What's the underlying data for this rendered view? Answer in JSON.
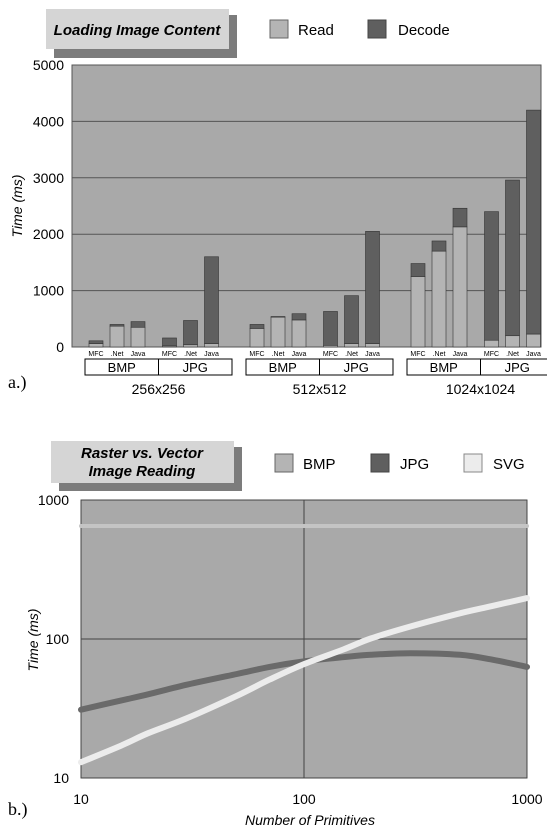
{
  "chart_data": [
    {
      "type": "bar",
      "subtype": "stacked",
      "panel_label": "a.)",
      "title": "Loading Image Content",
      "ylabel": "Time (ms)",
      "xlabel": "",
      "ylim": [
        0,
        5000
      ],
      "yticks": [
        0,
        1000,
        2000,
        3000,
        4000,
        5000
      ],
      "grid": true,
      "legend_position": "top",
      "series": [
        {
          "name": "Read",
          "color": "#b4b4b4"
        },
        {
          "name": "Decode",
          "color": "#5f5f5f"
        }
      ],
      "groups": [
        {
          "label": "256x256",
          "formats": [
            {
              "label": "BMP",
              "bars": [
                {
                  "lib": "MFC",
                  "read": 60,
                  "decode": 50
                },
                {
                  "lib": ".Net",
                  "read": 370,
                  "decode": 30
                },
                {
                  "lib": "Java",
                  "read": 350,
                  "decode": 100
                }
              ]
            },
            {
              "label": "JPG",
              "bars": [
                {
                  "lib": "MFC",
                  "read": 20,
                  "decode": 140
                },
                {
                  "lib": ".Net",
                  "read": 40,
                  "decode": 430
                },
                {
                  "lib": "Java",
                  "read": 60,
                  "decode": 1540
                }
              ]
            }
          ]
        },
        {
          "label": "512x512",
          "formats": [
            {
              "label": "BMP",
              "bars": [
                {
                  "lib": "MFC",
                  "read": 330,
                  "decode": 70
                },
                {
                  "lib": ".Net",
                  "read": 530,
                  "decode": 10
                },
                {
                  "lib": "Java",
                  "read": 480,
                  "decode": 110
                }
              ]
            },
            {
              "label": "JPG",
              "bars": [
                {
                  "lib": "MFC",
                  "read": 30,
                  "decode": 600
                },
                {
                  "lib": ".Net",
                  "read": 60,
                  "decode": 850
                },
                {
                  "lib": "Java",
                  "read": 60,
                  "decode": 1990
                }
              ]
            }
          ]
        },
        {
          "label": "1024x1024",
          "formats": [
            {
              "label": "BMP",
              "bars": [
                {
                  "lib": "MFC",
                  "read": 1250,
                  "decode": 230
                },
                {
                  "lib": ".Net",
                  "read": 1700,
                  "decode": 180
                },
                {
                  "lib": "Java",
                  "read": 2130,
                  "decode": 330
                }
              ]
            },
            {
              "label": "JPG",
              "bars": [
                {
                  "lib": "MFC",
                  "read": 120,
                  "decode": 2280
                },
                {
                  "lib": ".Net",
                  "read": 200,
                  "decode": 2760
                },
                {
                  "lib": "Java",
                  "read": 230,
                  "decode": 3970
                }
              ]
            }
          ]
        }
      ]
    },
    {
      "type": "line",
      "panel_label": "b.)",
      "title": "Raster vs. Vector Image Reading",
      "title_lines": [
        "Raster vs. Vector",
        "Image Reading"
      ],
      "xlabel": "Number of Primitives",
      "ylabel": "Time (ms)",
      "xscale": "log",
      "yscale": "log",
      "xlim": [
        10,
        1000
      ],
      "ylim": [
        10,
        1000
      ],
      "xticks": [
        10,
        100,
        1000
      ],
      "yticks": [
        10,
        100,
        1000
      ],
      "grid": true,
      "legend_position": "top",
      "x": [
        10,
        15,
        20,
        30,
        50,
        70,
        100,
        150,
        200,
        300,
        500,
        700,
        1000
      ],
      "series": [
        {
          "name": "BMP",
          "color": "#c4c4c4",
          "values": [
            650,
            650,
            650,
            650,
            650,
            650,
            650,
            650,
            650,
            650,
            650,
            650,
            650
          ]
        },
        {
          "name": "JPG",
          "color": "#6a6a6a",
          "values": [
            31,
            36,
            40,
            47,
            56,
            63,
            69,
            74,
            77,
            79,
            77,
            71,
            63
          ]
        },
        {
          "name": "SVG",
          "color": "#ececec",
          "values": [
            13,
            17,
            21,
            27,
            39,
            51,
            66,
            84,
            101,
            123,
            153,
            173,
            197
          ]
        }
      ]
    }
  ]
}
